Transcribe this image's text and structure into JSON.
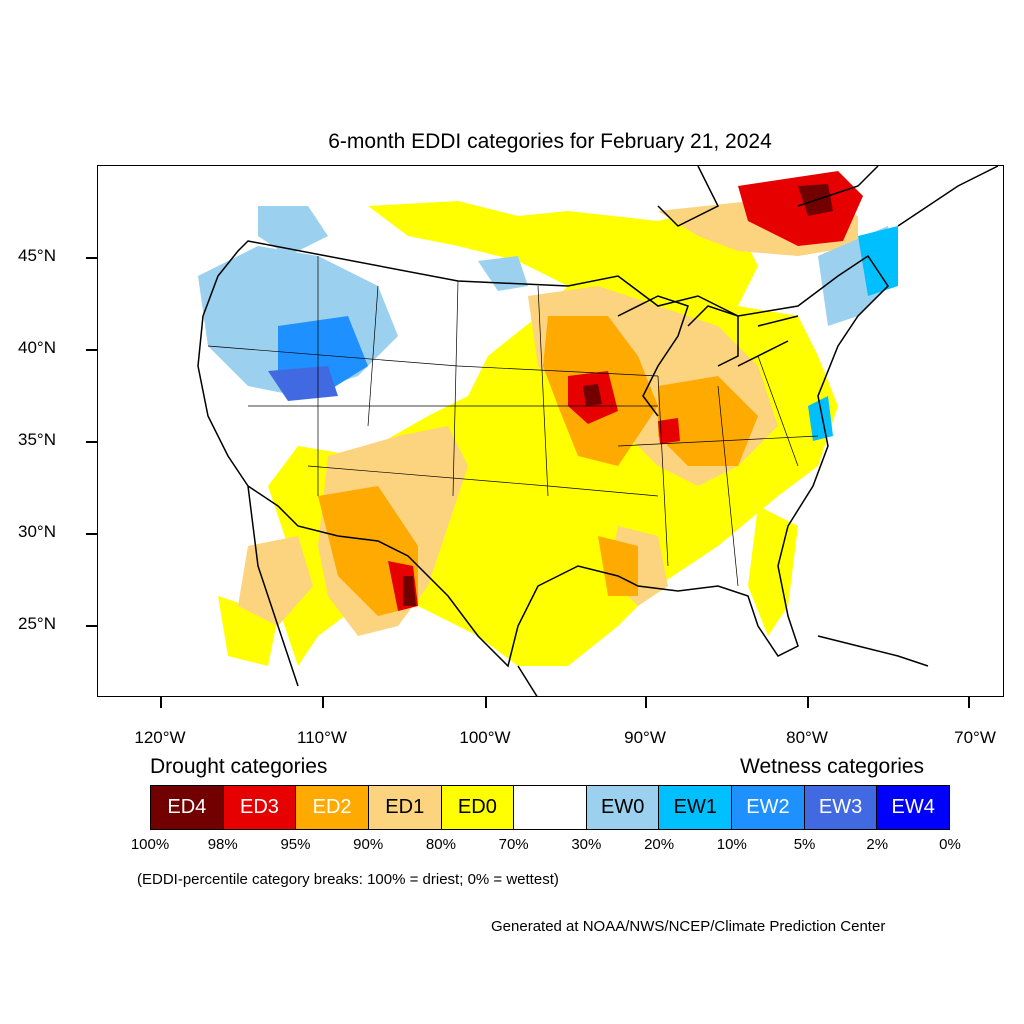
{
  "title": "6-month EDDI categories for February 21, 2024",
  "axes": {
    "lat_labels": [
      "45°N",
      "40°N",
      "35°N",
      "30°N",
      "25°N"
    ],
    "lon_labels": [
      "120°W",
      "110°W",
      "100°W",
      "90°W",
      "80°W",
      "70°W"
    ]
  },
  "legend": {
    "drought_heading": "Drought categories",
    "wetness_heading": "Wetness categories",
    "categories": [
      {
        "label": "ED4",
        "color": "#730000",
        "text_color": "#ffffff"
      },
      {
        "label": "ED3",
        "color": "#e60000",
        "text_color": "#ffffff"
      },
      {
        "label": "ED2",
        "color": "#ffaa00",
        "text_color": "#ffffff"
      },
      {
        "label": "ED1",
        "color": "#fcd37f",
        "text_color": "#000000"
      },
      {
        "label": "ED0",
        "color": "#ffff00",
        "text_color": "#000000"
      },
      {
        "label": "",
        "color": "#ffffff",
        "text_color": "#000000"
      },
      {
        "label": "EW0",
        "color": "#9bd0ee",
        "text_color": "#000000"
      },
      {
        "label": "EW1",
        "color": "#00bfff",
        "text_color": "#000000"
      },
      {
        "label": "EW2",
        "color": "#1e90ff",
        "text_color": "#ffffff"
      },
      {
        "label": "EW3",
        "color": "#4169e1",
        "text_color": "#ffffff"
      },
      {
        "label": "EW4",
        "color": "#0000ff",
        "text_color": "#ffffff"
      }
    ],
    "breaks": [
      "100%",
      "98%",
      "95%",
      "90%",
      "80%",
      "70%",
      "30%",
      "20%",
      "10%",
      "5%",
      "2%",
      "0%"
    ]
  },
  "note": "(EDDI-percentile category breaks: 100% = driest; 0% = wettest)",
  "credit": "Generated at NOAA/NWS/NCEP/Climate Prediction Center"
}
